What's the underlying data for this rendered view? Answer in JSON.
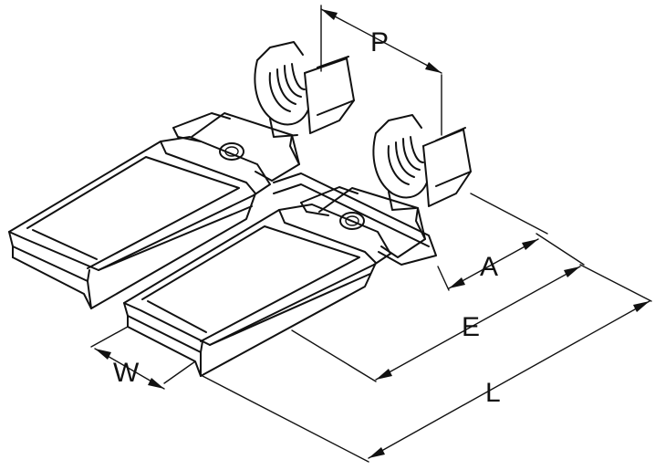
{
  "dimensions": {
    "P": "P",
    "A": "A",
    "E": "E",
    "L": "L",
    "W": "W"
  },
  "colors": {
    "line": "#111111",
    "background": "#ffffff"
  }
}
